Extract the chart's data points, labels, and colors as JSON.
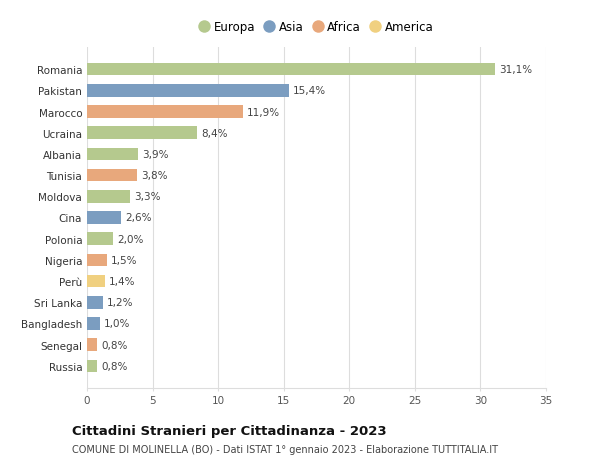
{
  "countries": [
    "Romania",
    "Pakistan",
    "Marocco",
    "Ucraina",
    "Albania",
    "Tunisia",
    "Moldova",
    "Cina",
    "Polonia",
    "Nigeria",
    "Perù",
    "Sri Lanka",
    "Bangladesh",
    "Senegal",
    "Russia"
  ],
  "values": [
    31.1,
    15.4,
    11.9,
    8.4,
    3.9,
    3.8,
    3.3,
    2.6,
    2.0,
    1.5,
    1.4,
    1.2,
    1.0,
    0.8,
    0.8
  ],
  "labels": [
    "31,1%",
    "15,4%",
    "11,9%",
    "8,4%",
    "3,9%",
    "3,8%",
    "3,3%",
    "2,6%",
    "2,0%",
    "1,5%",
    "1,4%",
    "1,2%",
    "1,0%",
    "0,8%",
    "0,8%"
  ],
  "continents": [
    "Europa",
    "Asia",
    "Africa",
    "Europa",
    "Europa",
    "Africa",
    "Europa",
    "Asia",
    "Europa",
    "Africa",
    "America",
    "Asia",
    "Asia",
    "Africa",
    "Europa"
  ],
  "colors": {
    "Europa": "#b5c98e",
    "Asia": "#7b9dc0",
    "Africa": "#e8a87c",
    "America": "#f0d080"
  },
  "legend_order": [
    "Europa",
    "Asia",
    "Africa",
    "America"
  ],
  "xlim": [
    0,
    35
  ],
  "xticks": [
    0,
    5,
    10,
    15,
    20,
    25,
    30,
    35
  ],
  "title": "Cittadini Stranieri per Cittadinanza - 2023",
  "subtitle": "COMUNE DI MOLINELLA (BO) - Dati ISTAT 1° gennaio 2023 - Elaborazione TUTTITALIA.IT",
  "bg_color": "#ffffff",
  "grid_color": "#dddddd",
  "bar_height": 0.6,
  "label_fontsize": 7.5,
  "ytick_fontsize": 7.5,
  "xtick_fontsize": 7.5,
  "title_fontsize": 9.5,
  "subtitle_fontsize": 7
}
